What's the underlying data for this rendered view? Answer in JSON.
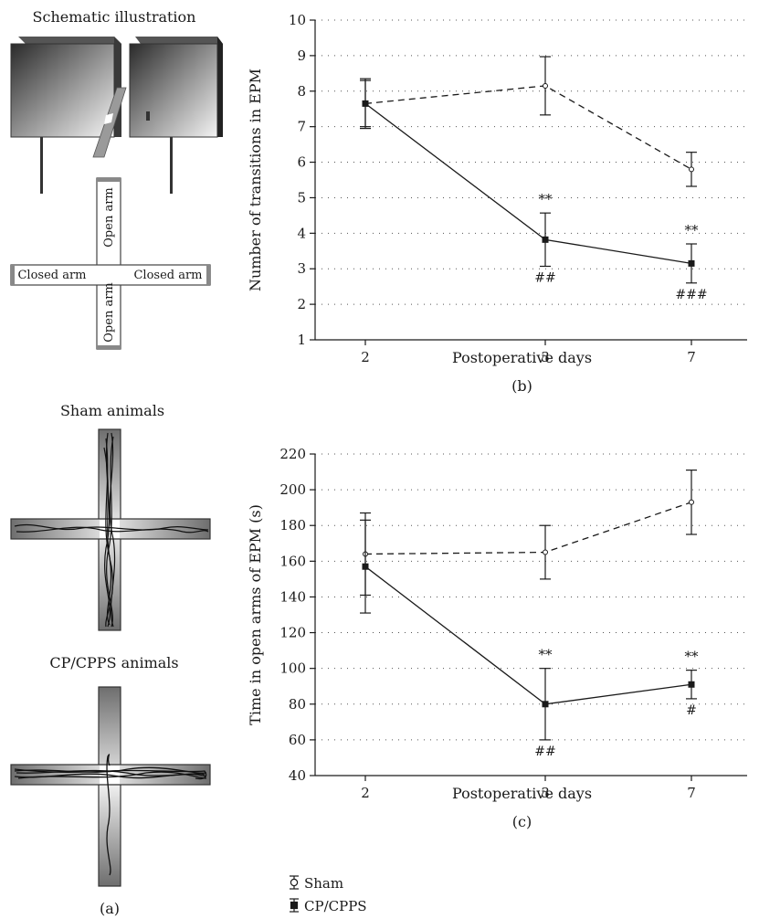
{
  "panel_a": {
    "schematic_title": "Schematic illustration",
    "open_arm_label": "Open arm",
    "closed_arm_label": "Closed arm",
    "sham_title": "Sham animals",
    "cp_title": "CP/CPPS animals",
    "caption": "(a)"
  },
  "legend": {
    "sham": "Sham",
    "cp": "CP/CPPS"
  },
  "colors": {
    "ink": "#1a1a1a",
    "grid": "#555555",
    "arm_fill": "#b0b0b0"
  },
  "chart_data": [
    {
      "id": "b",
      "type": "line",
      "caption": "(b)",
      "xlabel": "Postoperative days",
      "ylabel": "Number of transitions in EPM",
      "categories": [
        "2",
        "3",
        "7"
      ],
      "ylim": [
        1,
        10
      ],
      "yticks": [
        1,
        2,
        3,
        4,
        5,
        6,
        7,
        8,
        9,
        10
      ],
      "grid": true,
      "series": [
        {
          "name": "Sham",
          "style": "dashed",
          "marker": "open-circle",
          "values": [
            7.65,
            8.15,
            5.8
          ],
          "err": [
            0.7,
            0.82,
            0.48
          ]
        },
        {
          "name": "CP/CPPS",
          "style": "solid",
          "marker": "filled-square",
          "values": [
            7.65,
            3.82,
            3.15
          ],
          "err": [
            0.65,
            0.75,
            0.55
          ]
        }
      ],
      "annotations": [
        {
          "x": "3",
          "series": "CP/CPPS",
          "above": "**",
          "below": "##"
        },
        {
          "x": "7",
          "series": "CP/CPPS",
          "above": "**",
          "below": "###"
        }
      ]
    },
    {
      "id": "c",
      "type": "line",
      "caption": "(c)",
      "xlabel": "Postoperative days",
      "ylabel": "Time in open arms of EPM (s)",
      "categories": [
        "2",
        "3",
        "7"
      ],
      "ylim": [
        40,
        220
      ],
      "yticks": [
        40,
        60,
        80,
        100,
        120,
        140,
        160,
        180,
        200,
        220
      ],
      "grid": true,
      "series": [
        {
          "name": "Sham",
          "style": "dashed",
          "marker": "open-circle",
          "values": [
            164,
            165,
            193
          ],
          "err": [
            23,
            15,
            18
          ]
        },
        {
          "name": "CP/CPPS",
          "style": "solid",
          "marker": "filled-square",
          "values": [
            157,
            80,
            91
          ],
          "err": [
            26,
            20,
            8
          ]
        }
      ],
      "annotations": [
        {
          "x": "3",
          "series": "CP/CPPS",
          "above": "**",
          "below": "##"
        },
        {
          "x": "7",
          "series": "CP/CPPS",
          "above": "**",
          "below": "#"
        }
      ]
    }
  ]
}
